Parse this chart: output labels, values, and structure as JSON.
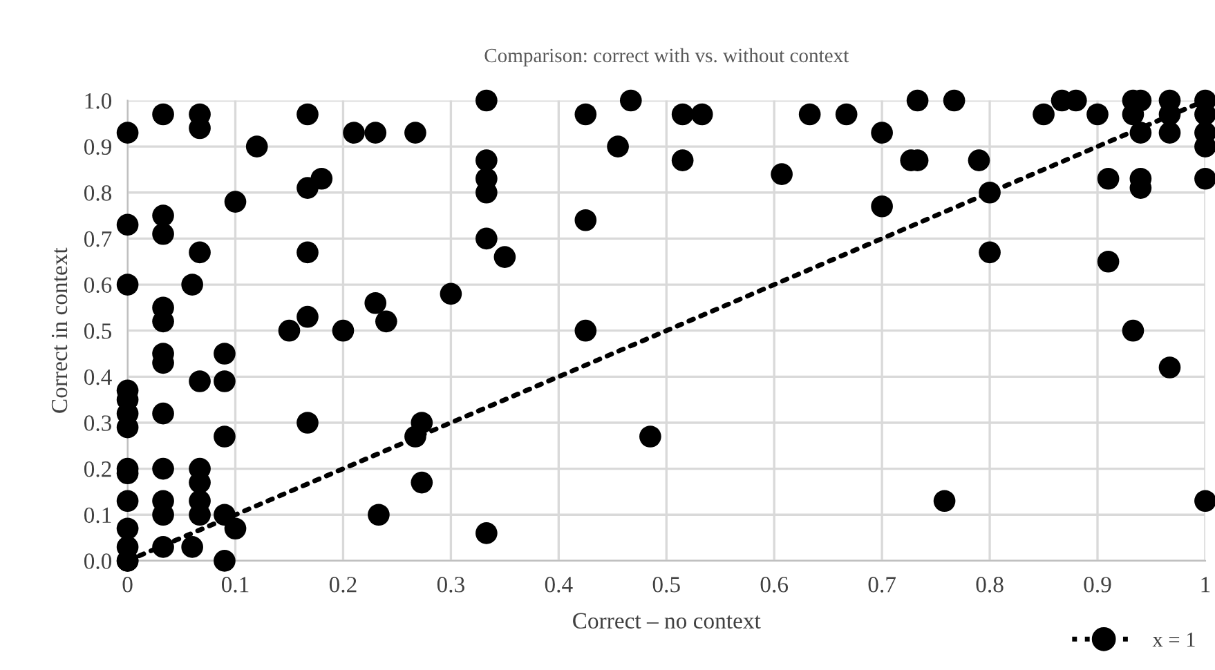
{
  "chart_data": {
    "type": "scatter",
    "title": "Comparison: correct with vs. without context",
    "xlabel": "Correct – no context",
    "ylabel": "Correct in context",
    "xlim": [
      0,
      1
    ],
    "ylim": [
      0,
      1
    ],
    "xticks": [
      0,
      0.1,
      0.2,
      0.3,
      0.4,
      0.5,
      0.6,
      0.7,
      0.8,
      0.9,
      1
    ],
    "yticks": [
      {
        "value": 0,
        "label": "0.0"
      },
      0.1,
      0.2,
      0.3,
      0.4,
      0.5,
      0.6,
      0.7,
      0.8,
      0.9,
      {
        "value": 1,
        "label": "1.0"
      }
    ],
    "grid": true,
    "legend": "bottom right",
    "series": [
      {
        "name": "x = 1",
        "color": "#000000",
        "marker": "circle",
        "x": [
          0,
          0,
          0,
          0,
          0,
          0,
          0,
          0,
          0,
          0,
          0,
          0,
          0,
          0,
          0.033,
          0.033,
          0.033,
          0.033,
          0.033,
          0.033,
          0.033,
          0.033,
          0.033,
          0.033,
          0.033,
          0.033,
          0.067,
          0.067,
          0.067,
          0.06,
          0.067,
          0.067,
          0.067,
          0.067,
          0.067,
          0.06,
          0.09,
          0.09,
          0.09,
          0.09,
          0.09,
          0.1,
          0.1,
          0.12,
          0.15,
          0.167,
          0.167,
          0.167,
          0.167,
          0.167,
          0.18,
          0.2,
          0.21,
          0.23,
          0.23,
          0.233,
          0.24,
          0.267,
          0.267,
          0.273,
          0.273,
          0.3,
          0.333,
          0.333,
          0.333,
          0.333,
          0.333,
          0.333,
          0.35,
          0.425,
          0.425,
          0.425,
          0.455,
          0.467,
          0.485,
          0.515,
          0.515,
          0.533,
          0.607,
          0.633,
          0.667,
          0.7,
          0.7,
          0.733,
          0.733,
          0.727,
          0.758,
          0.767,
          0.79,
          0.8,
          0.8,
          0.85,
          0.867,
          0.88,
          0.9,
          0.91,
          0.91,
          0.933,
          0.933,
          0.933,
          0.94,
          0.94,
          0.94,
          0.94,
          0.967,
          0.967,
          0.967,
          0.967,
          1,
          1,
          1,
          1,
          1,
          1
        ],
        "values": [
          0.93,
          0.73,
          0.6,
          0.37,
          0.35,
          0.32,
          0.29,
          0.2,
          0.19,
          0.13,
          0.07,
          0.03,
          0,
          0,
          0.97,
          0.75,
          0.71,
          0.55,
          0.52,
          0.45,
          0.43,
          0.32,
          0.2,
          0.13,
          0.1,
          0.03,
          0.97,
          0.94,
          0.67,
          0.6,
          0.39,
          0.2,
          0.17,
          0.13,
          0.1,
          0.03,
          0.45,
          0.39,
          0.27,
          0.1,
          0,
          0.78,
          0.07,
          0.9,
          0.5,
          0.97,
          0.81,
          0.67,
          0.53,
          0.3,
          0.83,
          0.5,
          0.93,
          0.93,
          0.56,
          0.1,
          0.52,
          0.93,
          0.27,
          0.3,
          0.17,
          0.58,
          1,
          0.87,
          0.83,
          0.8,
          0.7,
          0.06,
          0.66,
          0.97,
          0.74,
          0.5,
          0.9,
          1,
          0.27,
          0.97,
          0.87,
          0.97,
          0.84,
          0.97,
          0.97,
          0.93,
          0.77,
          1,
          0.87,
          0.87,
          0.13,
          1,
          0.87,
          0.8,
          0.67,
          0.97,
          1,
          1,
          0.97,
          0.83,
          0.65,
          1,
          0.97,
          0.5,
          1,
          0.93,
          0.83,
          0.81,
          1,
          0.97,
          0.93,
          0.42,
          1,
          0.97,
          0.93,
          0.9,
          0.83,
          0.13
        ]
      },
      {
        "type": "line",
        "color": "#000000",
        "line_style": "dotted",
        "x": [
          0,
          1
        ],
        "values": [
          0,
          1
        ]
      }
    ]
  }
}
